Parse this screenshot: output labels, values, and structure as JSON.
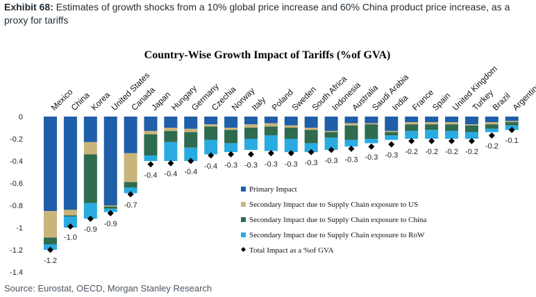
{
  "header": {
    "exhibit": "Exhibit 68:",
    "text": "Estimates of growth shocks from a 10% global price increase and 60% China product price increase, as a proxy for tariffs"
  },
  "footer": {
    "source": "Source: Eurostat, OECD, Morgan Stanley Research"
  },
  "chart_data": {
    "type": "bar",
    "stacked": true,
    "title": "Country-Wise Growth Impact of Tariffs (%of GVA)",
    "xlabel": "",
    "ylabel": "",
    "ylim": [
      -1.4,
      0
    ],
    "yticks": [
      0,
      -0.2,
      -0.4,
      -0.6,
      -0.8,
      -1,
      -1.2,
      -1.4
    ],
    "ytick_labels": [
      "0",
      "-0.2",
      "-0.4",
      "-0.6",
      "-0.8",
      "-1",
      "-1.2",
      "-1.4"
    ],
    "categories": [
      "Mexico",
      "China",
      "Korea",
      "United States",
      "Canada",
      "Japan",
      "Hungary",
      "Germany",
      "Czechia",
      "Norway",
      "Italy",
      "Poland",
      "Sweden",
      "South Africa",
      "Indonesia",
      "Australia",
      "Saudi Arabia",
      "India",
      "France",
      "Spain",
      "United Kingdom",
      "Turkey",
      "Brazil",
      "Argentina"
    ],
    "series": [
      {
        "name": "Primary Impact",
        "color": "#1f5ea8",
        "values": [
          -0.85,
          -0.84,
          -0.23,
          -0.8,
          -0.33,
          -0.13,
          -0.1,
          -0.11,
          -0.07,
          -0.1,
          -0.07,
          -0.06,
          -0.08,
          -0.1,
          -0.13,
          -0.06,
          -0.06,
          -0.13,
          -0.05,
          -0.05,
          -0.05,
          -0.07,
          -0.05,
          -0.04
        ]
      },
      {
        "name": "Secondary Impact due to Supply Chain exposure to US",
        "color": "#c9b47c",
        "values": [
          -0.24,
          -0.05,
          -0.11,
          -0.01,
          -0.26,
          -0.03,
          -0.03,
          -0.03,
          -0.02,
          -0.02,
          -0.03,
          -0.03,
          -0.02,
          -0.02,
          -0.01,
          -0.02,
          -0.01,
          -0.01,
          -0.02,
          -0.02,
          -0.02,
          -0.01,
          -0.02,
          -0.01
        ]
      },
      {
        "name": "Secondary Impact due to Supply Chain exposure to China",
        "color": "#2e6b4f",
        "values": [
          -0.06,
          -0.01,
          -0.44,
          -0.02,
          -0.05,
          -0.19,
          -0.1,
          -0.14,
          -0.12,
          -0.12,
          -0.1,
          -0.08,
          -0.1,
          -0.12,
          -0.05,
          -0.13,
          -0.13,
          -0.03,
          -0.06,
          -0.05,
          -0.06,
          -0.06,
          -0.04,
          -0.03
        ]
      },
      {
        "name": "Secondary Impact due to Supply Chain exposure to RoW",
        "color": "#29abe2",
        "values": [
          -0.05,
          -0.1,
          -0.14,
          -0.03,
          -0.05,
          -0.05,
          -0.17,
          -0.12,
          -0.13,
          -0.08,
          -0.1,
          -0.14,
          -0.12,
          -0.08,
          -0.11,
          -0.06,
          -0.04,
          -0.04,
          -0.07,
          -0.08,
          -0.07,
          -0.06,
          -0.03,
          -0.04
        ]
      }
    ],
    "total": {
      "name": "Total Impact as a %of GVA",
      "values": [
        -1.2,
        -0.99,
        -0.92,
        -0.87,
        -0.7,
        -0.43,
        -0.42,
        -0.4,
        -0.35,
        -0.34,
        -0.34,
        -0.33,
        -0.33,
        -0.32,
        -0.3,
        -0.29,
        -0.27,
        -0.25,
        -0.22,
        -0.22,
        -0.22,
        -0.22,
        -0.17,
        -0.12
      ],
      "labels": [
        "-1.2",
        "-1.0",
        "-0.9",
        "-0.9",
        "-0.7",
        "-0.4",
        "-0.4",
        "-0.4",
        "-0.4",
        "-0.3",
        "-0.3",
        "-0.3",
        "-0.3",
        "-0.3",
        "-0.3",
        "-0.3",
        "-0.3",
        "-0.3",
        "-0.2",
        "-0.2",
        "-0.2",
        "-0.2",
        "-0.2",
        "-0.1"
      ]
    },
    "legend_position": "bottom-right",
    "grid": false
  }
}
